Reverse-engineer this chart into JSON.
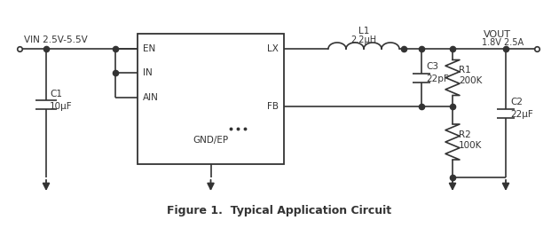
{
  "title": "Figure 1.  Typical Application Circuit",
  "title_fontsize": 9,
  "bg_color": "#ffffff",
  "line_color": "#333333",
  "text_color": "#333333",
  "fig_width": 6.3,
  "fig_height": 2.57,
  "vin_label": "VIN 2.5V-5.5V",
  "c1_label": "C1",
  "c1_val": "10μF",
  "en_label": "EN",
  "in_label": "IN",
  "ain_label": "AIN",
  "gnd_label": "GND/EP",
  "lx_label": "LX",
  "fb_label": "FB",
  "l1_label": "L1",
  "l1_val": "2.2μH",
  "vout_label": "VOUT",
  "vout_val": "1.8V 2.5A",
  "c3_label": "C3",
  "c3_val": "22pF",
  "r1_label": "R1",
  "r1_val": "200K",
  "c2_label": "C2",
  "c2_val": "22μF",
  "r2_label": "R2",
  "r2_val": "100K"
}
